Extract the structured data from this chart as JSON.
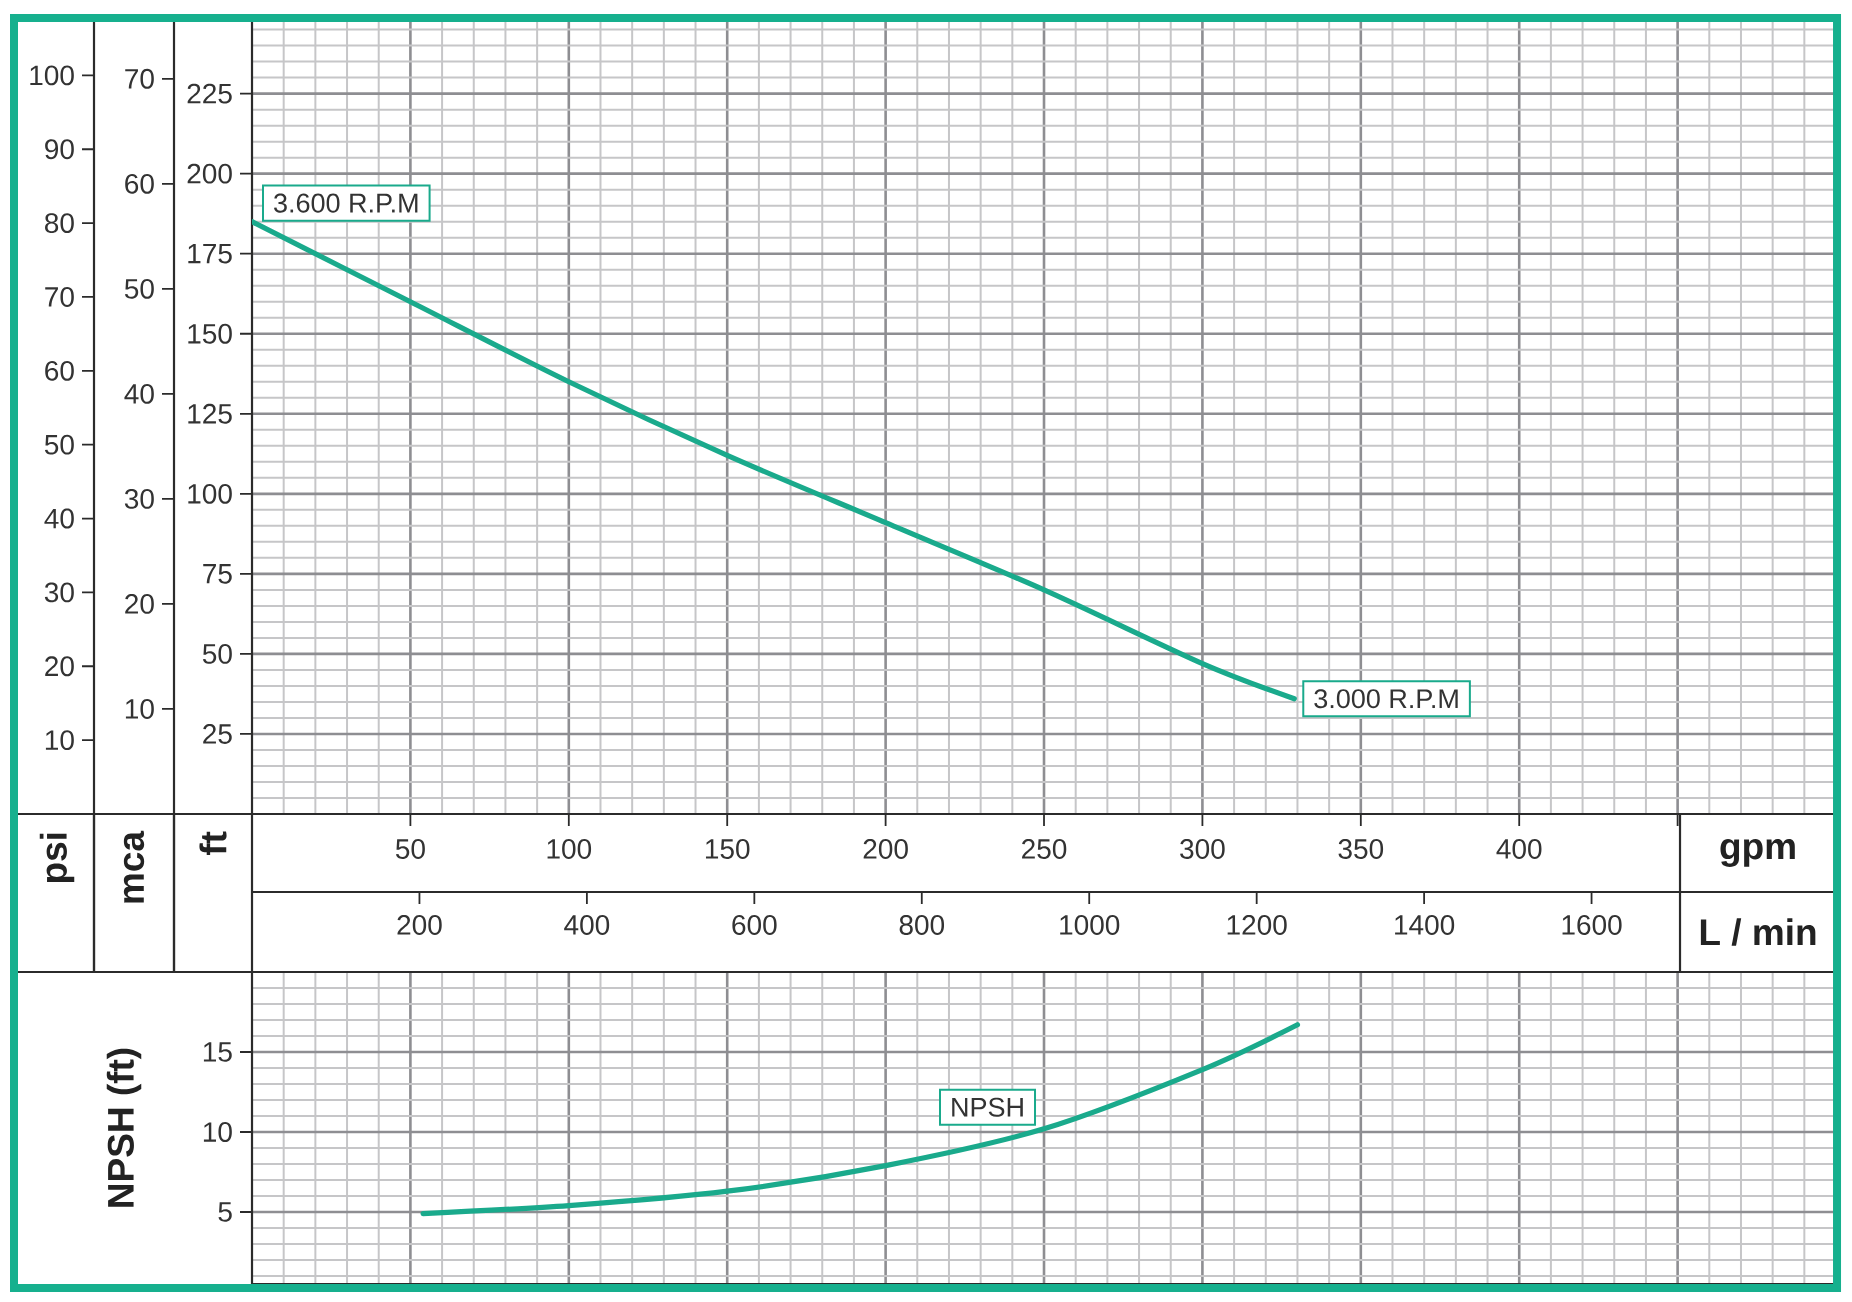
{
  "chart_data": [
    {
      "type": "line",
      "x": [
        0,
        50,
        100,
        150,
        200,
        250,
        300,
        329
      ],
      "series": [
        {
          "color": "#1aaa8c",
          "values": [
            185,
            160,
            135,
            112,
            91,
            70,
            47,
            36
          ]
        }
      ],
      "xlabel": "gpm",
      "ylabel": "ft",
      "y2label": "psi",
      "y3label": "mca",
      "x2label": "L / min",
      "xlim": [
        0,
        500
      ],
      "xticks": [
        50,
        100,
        150,
        200,
        250,
        300,
        350,
        400,
        {
          "value": 450,
          "label": null
        }
      ],
      "x2lim": [
        0,
        1892
      ],
      "x2ticks": [
        200,
        400,
        600,
        800,
        1000,
        1200,
        1400,
        1600
      ],
      "ylim": [
        0,
        248
      ],
      "yticks": [
        25,
        50,
        75,
        100,
        125,
        150,
        175,
        200,
        225
      ],
      "y2lim": [
        0,
        107.5
      ],
      "y2ticks": [
        10,
        20,
        30,
        40,
        50,
        60,
        70,
        80,
        90,
        100
      ],
      "y3lim": [
        0,
        75.6
      ],
      "y3ticks": [
        10,
        20,
        30,
        40,
        50,
        60,
        70
      ],
      "grid": true,
      "annotations": [
        {
          "text": "3.600 R.P.M",
          "x": 0,
          "y": 185
        },
        {
          "text": "3.000 R.P.M",
          "x": 329,
          "y": 36
        }
      ]
    },
    {
      "type": "line",
      "x": [
        54,
        100,
        150,
        200,
        250,
        300,
        330
      ],
      "series": [
        {
          "name": "NPSH",
          "color": "#1aaa8c",
          "values": [
            4.9,
            5.4,
            6.3,
            7.9,
            10.2,
            13.9,
            16.7
          ]
        }
      ],
      "ylabel": "NPSH (ft)",
      "xlim": [
        0,
        500
      ],
      "xticks": [
        50,
        100,
        150,
        200,
        250,
        300,
        350,
        400,
        {
          "value": 450,
          "label": null
        }
      ],
      "ylim": [
        0.5,
        20
      ],
      "yticks": [
        5,
        10,
        15
      ],
      "grid": true,
      "tick_labels": "y"
    }
  ]
}
